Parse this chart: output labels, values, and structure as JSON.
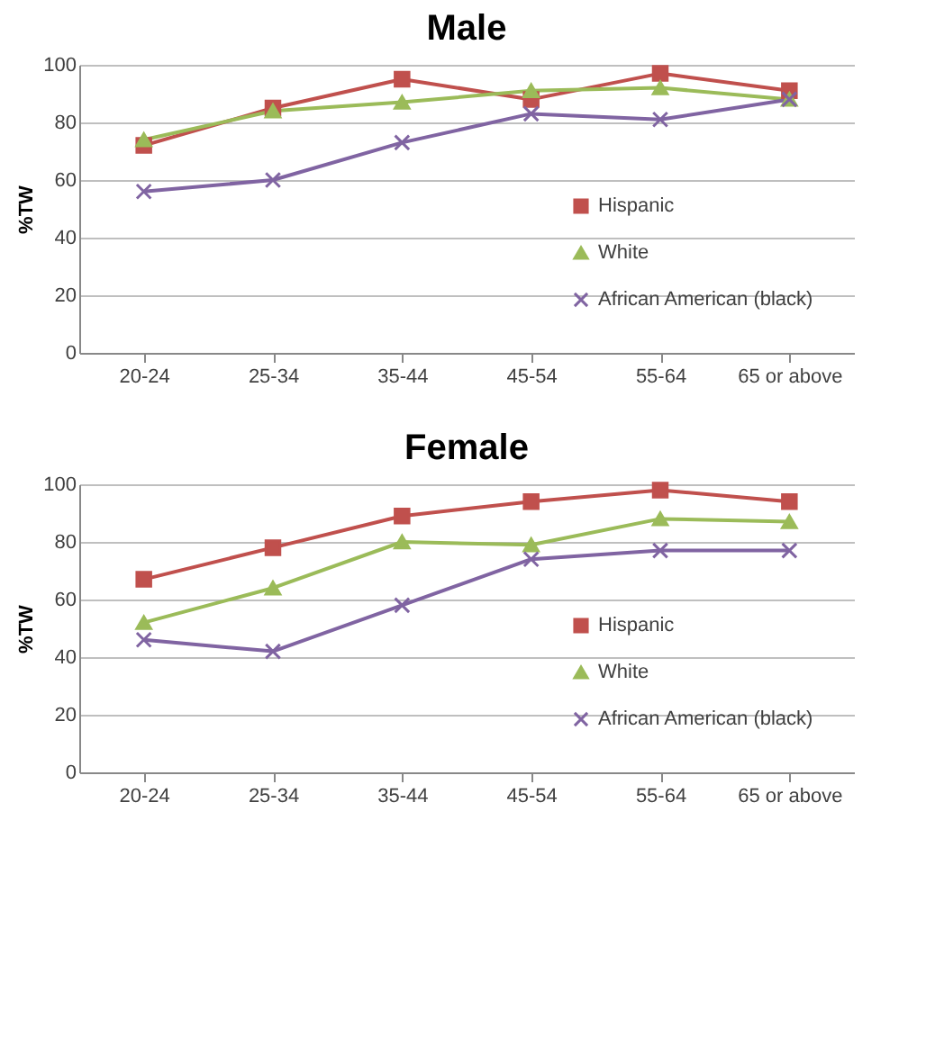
{
  "chart_data": [
    {
      "type": "line",
      "title": "Male",
      "ylabel": "%TW",
      "categories": [
        "20-24",
        "25-34",
        "35-44",
        "45-54",
        "55-64",
        "65 or above"
      ],
      "ylim": [
        0,
        100
      ],
      "yticks": [
        0,
        20,
        40,
        60,
        80,
        100
      ],
      "grid": "y",
      "legend": "bottom right",
      "series": [
        {
          "name": "Hispanic",
          "color": "#c0504d",
          "marker": "square",
          "values": [
            72,
            85,
            95,
            88,
            97,
            91
          ]
        },
        {
          "name": "White",
          "color": "#9bbb59",
          "marker": "triangle",
          "values": [
            74,
            84,
            87,
            91,
            92,
            88
          ]
        },
        {
          "name": "African American (black)",
          "color": "#8064a2",
          "marker": "cross",
          "values": [
            56,
            60,
            73,
            83,
            81,
            88
          ]
        }
      ]
    },
    {
      "type": "line",
      "title": "Female",
      "ylabel": "%TW",
      "categories": [
        "20-24",
        "25-34",
        "35-44",
        "45-54",
        "55-64",
        "65 or above"
      ],
      "ylim": [
        0,
        100
      ],
      "yticks": [
        0,
        20,
        40,
        60,
        80,
        100
      ],
      "grid": "y",
      "legend": "bottom right",
      "series": [
        {
          "name": "Hispanic",
          "color": "#c0504d",
          "marker": "square",
          "values": [
            67,
            78,
            89,
            94,
            98,
            94
          ]
        },
        {
          "name": "White",
          "color": "#9bbb59",
          "marker": "triangle",
          "values": [
            52,
            64,
            80,
            79,
            88,
            87
          ]
        },
        {
          "name": "African American (black)",
          "color": "#8064a2",
          "marker": "cross",
          "values": [
            46,
            42,
            58,
            74,
            77,
            77
          ]
        }
      ]
    }
  ]
}
